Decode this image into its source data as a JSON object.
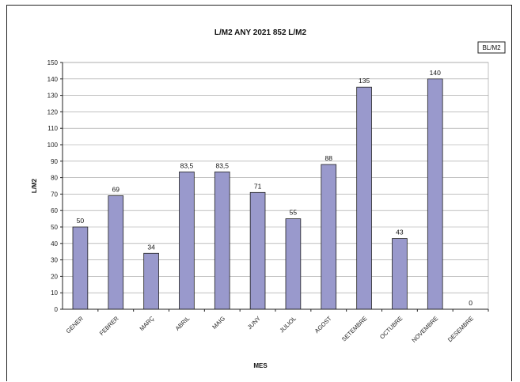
{
  "chart_data": {
    "type": "bar",
    "title": "L/M2 ANY 2021 852 L/M2",
    "xlabel": "MES",
    "ylabel": "L/M2",
    "legend": "BL/M2",
    "legend_position": "top-right",
    "ylim": [
      0,
      150
    ],
    "ytick_step": 10,
    "grid": true,
    "bar_color": "#9999cc",
    "categories": [
      "GENER",
      "FEBRER",
      "MARÇ",
      "ABRIL",
      "MAIG",
      "JUNY",
      "JULIOL",
      "AGOST",
      "SETEMBRE",
      "OCTUBRE",
      "NOVEMBRE",
      "DESEMBRE"
    ],
    "values": [
      50,
      69,
      34,
      83.5,
      83.5,
      71,
      55,
      88,
      135,
      43,
      140,
      0
    ],
    "value_labels": [
      "50",
      "69",
      "34",
      "83,5",
      "83,5",
      "71",
      "55",
      "88",
      "135",
      "43",
      "140",
      "0"
    ]
  }
}
